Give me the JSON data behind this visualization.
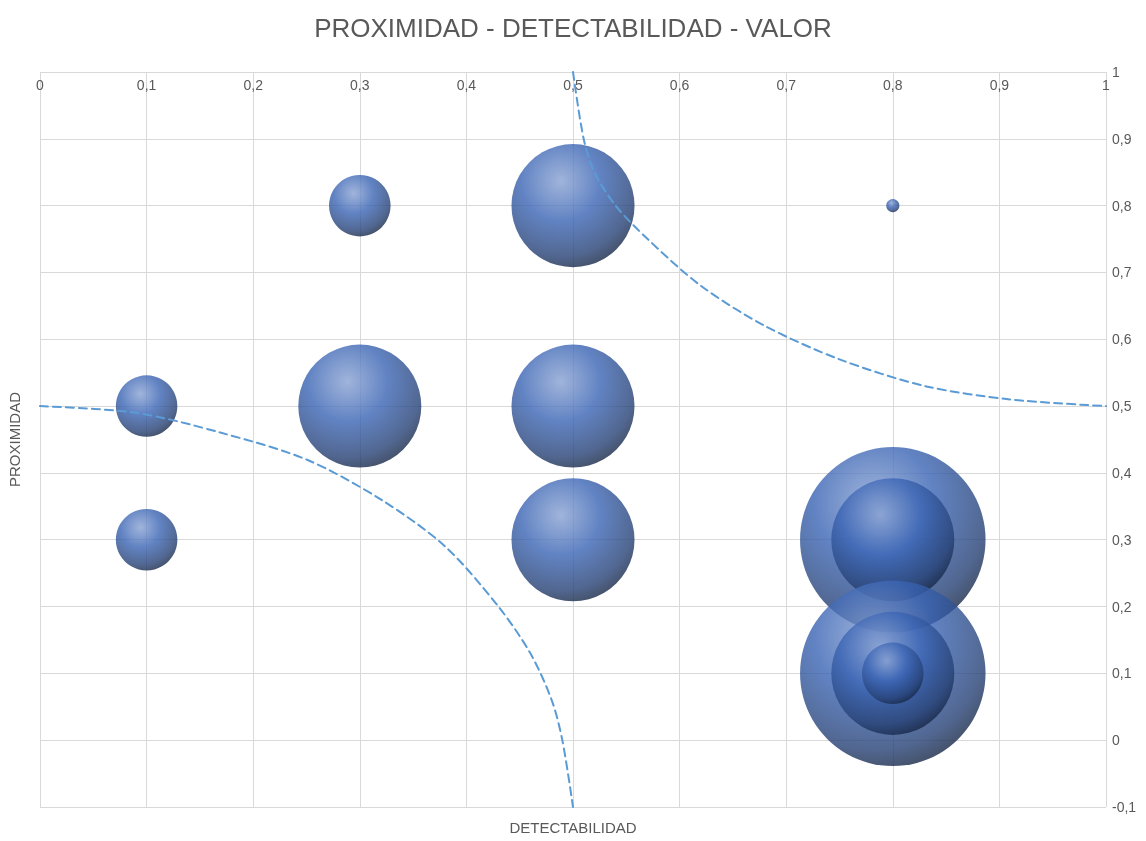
{
  "chart_data": {
    "type": "bubble",
    "title": "PROXIMIDAD - DETECTABILIDAD - VALOR",
    "xlabel": "DETECTABILIDAD",
    "ylabel": "PROXIMIDAD",
    "xlim": [
      0,
      1
    ],
    "xticks": [
      0,
      {
        "value": 0.1,
        "label": "0,1"
      },
      {
        "value": 0.2,
        "label": "0,2"
      },
      {
        "value": 0.3,
        "label": "0,3"
      },
      {
        "value": 0.4,
        "label": "0,4"
      },
      {
        "value": 0.5,
        "label": "0,5"
      },
      {
        "value": 0.6,
        "label": "0,6"
      },
      {
        "value": 0.7,
        "label": "0,7"
      },
      {
        "value": 0.8,
        "label": "0,8"
      },
      {
        "value": 0.9,
        "label": "0,9"
      },
      1
    ],
    "ylim": [
      -0.1,
      1
    ],
    "yticks": [
      {
        "value": -0.1,
        "label": "-0,1"
      },
      0,
      {
        "value": 0.1,
        "label": "0,1"
      },
      {
        "value": 0.2,
        "label": "0,2"
      },
      {
        "value": 0.3,
        "label": "0,3"
      },
      {
        "value": 0.4,
        "label": "0,4"
      },
      {
        "value": 0.5,
        "label": "0,5"
      },
      {
        "value": 0.6,
        "label": "0,6"
      },
      {
        "value": 0.7,
        "label": "0,7"
      },
      {
        "value": 0.8,
        "label": "0,8"
      },
      {
        "value": 0.9,
        "label": "0,9"
      },
      1
    ],
    "grid": true,
    "series": [
      {
        "type": "bubble",
        "color": "#3a64b4",
        "marker": "circle",
        "x": [
          0.3,
          0.5,
          0.8,
          0.1,
          0.3,
          0.5,
          0.1,
          0.5,
          0.8,
          0.8,
          0.8,
          0.8,
          0.8
        ],
        "values": [
          0.8,
          0.8,
          0.8,
          0.5,
          0.5,
          0.5,
          0.3,
          0.3,
          0.3,
          0.3,
          0.1,
          0.1,
          0.1
        ],
        "sizes": [
          0.11,
          0.44,
          0.005,
          0.11,
          0.44,
          0.44,
          0.11,
          0.44,
          1,
          0.44,
          1,
          0.44,
          0.11
        ]
      },
      {
        "type": "line",
        "color": "#5b9bd5",
        "line_style": "dashed",
        "marker": "none",
        "x": [
          0,
          0.09,
          0.17,
          0.25,
          0.32,
          0.38,
          0.43,
          0.46,
          0.48,
          0.49,
          0.5
        ],
        "values": [
          0.5,
          0.49,
          0.46,
          0.42,
          0.36,
          0.29,
          0.2,
          0.13,
          0.06,
          0,
          -0.1
        ]
      },
      {
        "type": "line",
        "color": "#5b9bd5",
        "line_style": "dashed",
        "marker": "none",
        "x": [
          0.5,
          0.51,
          0.52,
          0.54,
          0.57,
          0.62,
          0.68,
          0.75,
          0.83,
          0.91,
          1
        ],
        "values": [
          1,
          0.9,
          0.85,
          0.8,
          0.75,
          0.68,
          0.62,
          0.57,
          0.53,
          0.51,
          0.5
        ]
      }
    ]
  }
}
